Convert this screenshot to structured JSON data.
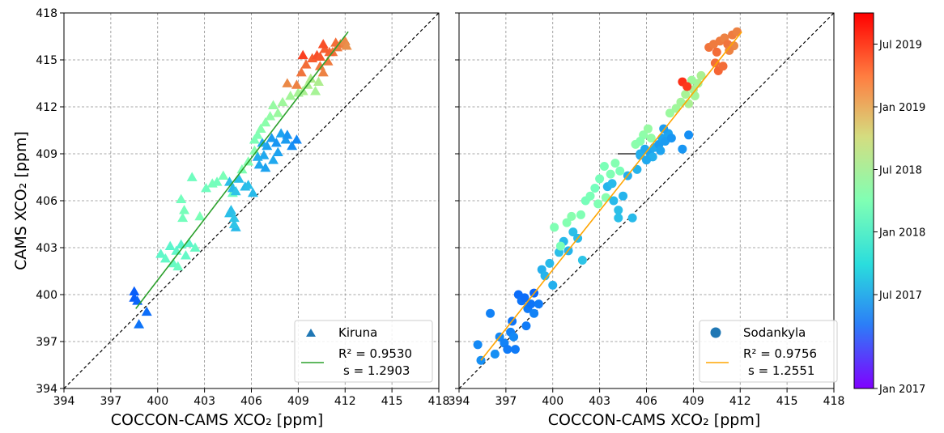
{
  "chart_data": [
    {
      "type": "scatter",
      "marker": "triangle",
      "xlabel": "COCCON-CAMS XCO₂ [ppm]",
      "ylabel": "CAMS XCO₂ [ppm]",
      "xlim": [
        394,
        418
      ],
      "ylim": [
        394,
        418
      ],
      "ticks": [
        "394",
        "397",
        "400",
        "403",
        "406",
        "409",
        "412",
        "415",
        "418"
      ],
      "grid": true,
      "one_to_one_line": true,
      "legend_position": "lower-right",
      "legend": {
        "series_name": "Kiruna",
        "r2_line": "R² = 0.9530",
        "s_line": "s = 1.2903",
        "fit_color": "#2ca02c",
        "marker_color": "#1f77b4"
      },
      "fit_line": {
        "x": [
          398.6,
          412.2
        ],
        "y": [
          399.1,
          416.8
        ]
      },
      "series": [
        {
          "name": "Kiruna",
          "points": [
            [
              398.5,
              400.2,
              0.12
            ],
            [
              398.5,
              399.8,
              0.12
            ],
            [
              398.7,
              399.6,
              0.13
            ],
            [
              399.3,
              398.9,
              0.14
            ],
            [
              398.8,
              398.1,
              0.15
            ],
            [
              400.2,
              402.6,
              0.42
            ],
            [
              400.5,
              402.3,
              0.43
            ],
            [
              400.8,
              403.1,
              0.41
            ],
            [
              401.0,
              402.0,
              0.44
            ],
            [
              401.2,
              402.8,
              0.42
            ],
            [
              401.5,
              403.2,
              0.4
            ],
            [
              401.8,
              402.5,
              0.43
            ],
            [
              401.3,
              401.8,
              0.45
            ],
            [
              402.0,
              403.3,
              0.41
            ],
            [
              402.4,
              403.0,
              0.44
            ],
            [
              401.6,
              404.9,
              0.47
            ],
            [
              401.7,
              405.4,
              0.48
            ],
            [
              401.5,
              406.1,
              0.47
            ],
            [
              402.2,
              407.5,
              0.46
            ],
            [
              402.7,
              405.0,
              0.49
            ],
            [
              403.1,
              406.8,
              0.46
            ],
            [
              403.5,
              407.1,
              0.48
            ],
            [
              403.8,
              407.2,
              0.47
            ],
            [
              404.2,
              407.6,
              0.49
            ],
            [
              404.8,
              406.5,
              0.47
            ],
            [
              404.6,
              407.2,
              0.27
            ],
            [
              404.8,
              406.8,
              0.26
            ],
            [
              405.0,
              406.6,
              0.28
            ],
            [
              405.2,
              407.4,
              0.27
            ],
            [
              405.6,
              406.9,
              0.26
            ],
            [
              404.6,
              405.2,
              0.27
            ],
            [
              404.9,
              404.9,
              0.28
            ],
            [
              405.0,
              404.3,
              0.26
            ],
            [
              404.7,
              405.4,
              0.27
            ],
            [
              404.9,
              404.5,
              0.28
            ],
            [
              405.8,
              407.0,
              0.27
            ],
            [
              406.1,
              406.5,
              0.26
            ],
            [
              405.4,
              408.0,
              0.5
            ],
            [
              405.8,
              408.5,
              0.51
            ],
            [
              406.2,
              409.2,
              0.52
            ],
            [
              406.5,
              408.3,
              0.23
            ],
            [
              406.8,
              408.9,
              0.23
            ],
            [
              407.0,
              409.5,
              0.22
            ],
            [
              407.3,
              410.0,
              0.21
            ],
            [
              407.6,
              409.7,
              0.2
            ],
            [
              407.9,
              410.3,
              0.22
            ],
            [
              408.2,
              409.9,
              0.21
            ],
            [
              406.9,
              408.1,
              0.22
            ],
            [
              407.4,
              408.6,
              0.23
            ],
            [
              407.7,
              409.1,
              0.22
            ],
            [
              408.3,
              410.2,
              0.2
            ],
            [
              408.6,
              409.5,
              0.19
            ],
            [
              408.9,
              409.9,
              0.18
            ],
            [
              406.4,
              408.8,
              0.24
            ],
            [
              406.7,
              409.7,
              0.23
            ],
            [
              406.2,
              409.9,
              0.49
            ],
            [
              406.4,
              410.2,
              0.5
            ],
            [
              406.6,
              410.6,
              0.52
            ],
            [
              406.9,
              411.0,
              0.53
            ],
            [
              407.2,
              411.4,
              0.55
            ],
            [
              407.4,
              412.1,
              0.56
            ],
            [
              407.7,
              411.6,
              0.57
            ],
            [
              408.0,
              412.3,
              0.58
            ],
            [
              408.5,
              412.7,
              0.59
            ],
            [
              409.0,
              412.9,
              0.6
            ],
            [
              409.3,
              413.0,
              0.61
            ],
            [
              409.6,
              413.4,
              0.62
            ],
            [
              410.1,
              413.0,
              0.6
            ],
            [
              409.8,
              413.8,
              0.63
            ],
            [
              410.3,
              413.6,
              0.62
            ],
            [
              408.3,
              413.5,
              0.82
            ],
            [
              408.9,
              413.4,
              0.83
            ],
            [
              409.2,
              414.2,
              0.85
            ],
            [
              409.5,
              414.7,
              0.86
            ],
            [
              409.9,
              415.1,
              0.88
            ],
            [
              410.2,
              415.3,
              0.9
            ],
            [
              410.4,
              414.6,
              0.84
            ],
            [
              410.6,
              414.2,
              0.83
            ],
            [
              410.9,
              414.9,
              0.84
            ],
            [
              411.2,
              415.5,
              0.85
            ],
            [
              411.5,
              415.8,
              0.84
            ],
            [
              411.7,
              416.0,
              0.83
            ],
            [
              412.0,
              416.2,
              0.82
            ],
            [
              411.4,
              416.1,
              0.86
            ],
            [
              411.0,
              415.5,
              0.87
            ],
            [
              410.7,
              415.7,
              0.88
            ],
            [
              410.4,
              415.2,
              0.89
            ],
            [
              409.3,
              415.3,
              0.92
            ],
            [
              410.6,
              416.0,
              0.9
            ],
            [
              412.1,
              415.9,
              0.81
            ]
          ]
        }
      ]
    },
    {
      "type": "scatter",
      "marker": "circle",
      "xlabel": "COCCON-CAMS XCO₂ [ppm]",
      "ylabel": "",
      "xlim": [
        394,
        418
      ],
      "ylim": [
        394,
        418
      ],
      "ticks": [
        "394",
        "397",
        "400",
        "403",
        "406",
        "409",
        "412",
        "415",
        "418"
      ],
      "grid": true,
      "one_to_one_line": true,
      "legend_position": "lower-right",
      "legend": {
        "series_name": "Sodankyla",
        "r2_line": "R² = 0.9756",
        "s_line": "s = 1.2551",
        "fit_color": "#ffa500",
        "marker_color": "#1f77b4"
      },
      "fit_line": {
        "x": [
          395.4,
          412.1
        ],
        "y": [
          395.8,
          416.8
        ]
      },
      "series": [
        {
          "name": "Sodankyla",
          "points": [
            [
              395.2,
              396.8,
              0.18
            ],
            [
              395.4,
              395.8,
              0.19
            ],
            [
              396.0,
              398.8,
              0.17
            ],
            [
              396.3,
              396.2,
              0.19
            ],
            [
              396.6,
              397.3,
              0.18
            ],
            [
              396.9,
              396.9,
              0.17
            ],
            [
              397.1,
              396.5,
              0.16
            ],
            [
              397.3,
              397.6,
              0.17
            ],
            [
              397.5,
              397.3,
              0.18
            ],
            [
              397.6,
              396.5,
              0.16
            ],
            [
              397.4,
              398.3,
              0.15
            ],
            [
              397.8,
              400.0,
              0.14
            ],
            [
              398.0,
              399.6,
              0.15
            ],
            [
              398.2,
              399.8,
              0.14
            ],
            [
              398.4,
              399.1,
              0.16
            ],
            [
              398.6,
              399.4,
              0.15
            ],
            [
              398.8,
              400.1,
              0.13
            ],
            [
              398.3,
              398.0,
              0.16
            ],
            [
              398.8,
              398.8,
              0.17
            ],
            [
              399.1,
              399.4,
              0.16
            ],
            [
              399.3,
              401.6,
              0.24
            ],
            [
              399.5,
              401.2,
              0.25
            ],
            [
              399.8,
              402.0,
              0.26
            ],
            [
              400.0,
              400.6,
              0.24
            ],
            [
              400.4,
              402.7,
              0.27
            ],
            [
              400.7,
              403.4,
              0.26
            ],
            [
              401.0,
              402.8,
              0.25
            ],
            [
              401.3,
              404.0,
              0.27
            ],
            [
              401.6,
              403.6,
              0.26
            ],
            [
              401.9,
              402.2,
              0.28
            ],
            [
              400.1,
              404.3,
              0.5
            ],
            [
              400.5,
              403.1,
              0.49
            ],
            [
              400.9,
              404.6,
              0.51
            ],
            [
              401.2,
              405.0,
              0.52
            ],
            [
              401.8,
              405.1,
              0.5
            ],
            [
              402.1,
              406.0,
              0.48
            ],
            [
              402.4,
              406.3,
              0.49
            ],
            [
              402.7,
              406.8,
              0.47
            ],
            [
              403.0,
              407.4,
              0.48
            ],
            [
              403.3,
              408.2,
              0.49
            ],
            [
              403.7,
              407.7,
              0.5
            ],
            [
              404.0,
              408.4,
              0.51
            ],
            [
              404.3,
              407.9,
              0.49
            ],
            [
              402.9,
              405.8,
              0.5
            ],
            [
              403.4,
              406.2,
              0.52
            ],
            [
              403.5,
              406.9,
              0.25
            ],
            [
              403.8,
              407.1,
              0.26
            ],
            [
              404.2,
              405.4,
              0.27
            ],
            [
              404.5,
              406.3,
              0.25
            ],
            [
              404.8,
              407.6,
              0.24
            ],
            [
              405.1,
              404.9,
              0.26
            ],
            [
              405.4,
              408.0,
              0.25
            ],
            [
              405.6,
              408.9,
              0.23
            ],
            [
              404.2,
              404.9,
              0.27
            ],
            [
              403.9,
              406.0,
              0.26
            ],
            [
              405.6,
              409.0,
              0.24
            ],
            [
              405.9,
              409.3,
              0.23
            ],
            [
              406.2,
              409.1,
              0.22
            ],
            [
              406.5,
              409.4,
              0.23
            ],
            [
              406.8,
              409.6,
              0.21
            ],
            [
              407.0,
              410.0,
              0.22
            ],
            [
              407.2,
              409.8,
              0.21
            ],
            [
              407.4,
              410.3,
              0.22
            ],
            [
              407.6,
              410.0,
              0.2
            ],
            [
              407.1,
              410.6,
              0.21
            ],
            [
              406.9,
              409.2,
              0.22
            ],
            [
              406.4,
              408.8,
              0.24
            ],
            [
              406.0,
              408.6,
              0.23
            ],
            [
              408.3,
              409.3,
              0.2
            ],
            [
              408.7,
              410.2,
              0.19
            ],
            [
              405.3,
              409.6,
              0.53
            ],
            [
              405.8,
              410.2,
              0.54
            ],
            [
              406.3,
              410.0,
              0.55
            ],
            [
              406.1,
              410.6,
              0.56
            ],
            [
              405.6,
              409.8,
              0.52
            ],
            [
              407.5,
              411.6,
              0.57
            ],
            [
              407.9,
              411.9,
              0.58
            ],
            [
              408.2,
              412.3,
              0.59
            ],
            [
              408.5,
              412.8,
              0.6
            ],
            [
              408.7,
              412.2,
              0.61
            ],
            [
              409.0,
              413.1,
              0.62
            ],
            [
              409.3,
              413.5,
              0.6
            ],
            [
              409.5,
              414.0,
              0.61
            ],
            [
              409.1,
              412.7,
              0.59
            ],
            [
              408.9,
              413.7,
              0.58
            ],
            [
              408.3,
              413.6,
              0.94
            ],
            [
              408.6,
              413.3,
              0.93
            ],
            [
              410.0,
              415.8,
              0.85
            ],
            [
              410.3,
              416.0,
              0.84
            ],
            [
              410.5,
              415.5,
              0.86
            ],
            [
              410.7,
              416.2,
              0.84
            ],
            [
              411.0,
              416.4,
              0.83
            ],
            [
              411.2,
              416.0,
              0.85
            ],
            [
              411.5,
              416.6,
              0.84
            ],
            [
              411.8,
              416.8,
              0.83
            ],
            [
              411.6,
              415.9,
              0.82
            ],
            [
              411.3,
              415.6,
              0.83
            ],
            [
              410.4,
              414.8,
              0.86
            ],
            [
              410.6,
              414.3,
              0.87
            ],
            [
              410.9,
              414.6,
              0.86
            ]
          ]
        }
      ]
    }
  ],
  "colorbar": {
    "ticks": [
      "Jul 2019",
      "Jan 2019",
      "Jul 2018",
      "Jan 2018",
      "Jul 2017",
      "Jan 2017"
    ],
    "tick_fractions": [
      0.917,
      0.75,
      0.583,
      0.417,
      0.25,
      0.0
    ],
    "colormap": "rainbow"
  }
}
